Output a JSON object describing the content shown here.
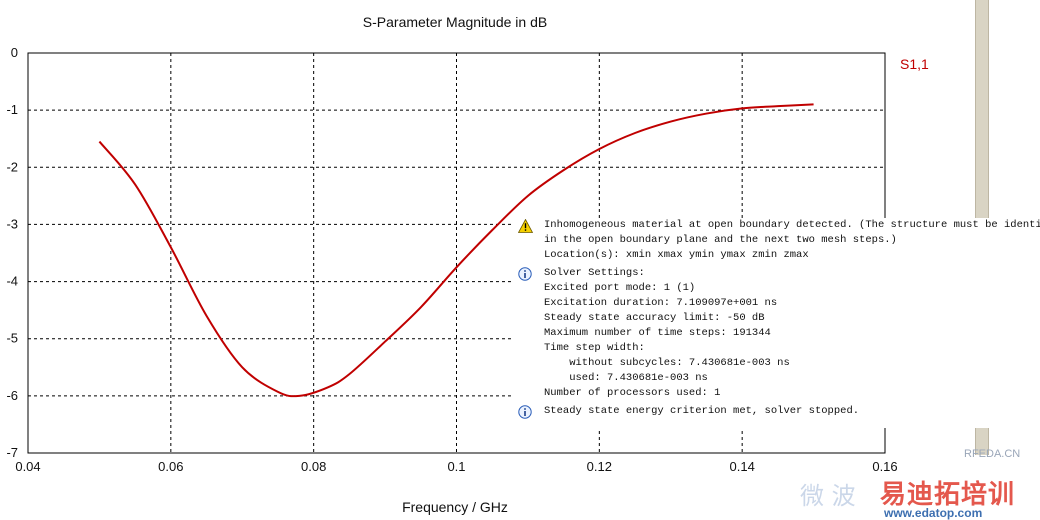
{
  "chart_data": {
    "type": "line",
    "title": "S-Parameter Magnitude in dB",
    "xlabel": "Frequency / GHz",
    "ylabel": "",
    "xlim": [
      0.04,
      0.16
    ],
    "ylim": [
      -7,
      0
    ],
    "xticks": [
      "0.04",
      "0.06",
      "0.08",
      "0.1",
      "0.12",
      "0.14",
      "0.16"
    ],
    "yticks": [
      "0",
      "-1",
      "-2",
      "-3",
      "-4",
      "-5",
      "-6",
      "-7"
    ],
    "grid": true,
    "legend_placement": "top-right",
    "series": [
      {
        "name": "S1,1",
        "color": "#c00000",
        "x": [
          0.05,
          0.055,
          0.06,
          0.065,
          0.07,
          0.075,
          0.078,
          0.082,
          0.085,
          0.09,
          0.095,
          0.1,
          0.105,
          0.11,
          0.115,
          0.12,
          0.125,
          0.13,
          0.135,
          0.14,
          0.145,
          0.15
        ],
        "y": [
          -1.55,
          -2.3,
          -3.4,
          -4.6,
          -5.5,
          -5.93,
          -6.0,
          -5.85,
          -5.62,
          -5.05,
          -4.45,
          -3.75,
          -3.1,
          -2.5,
          -2.05,
          -1.68,
          -1.4,
          -1.2,
          -1.06,
          -0.97,
          -0.93,
          -0.9
        ]
      }
    ]
  },
  "messages": [
    {
      "type": "warning",
      "icon": "warning-icon",
      "lines": [
        "Inhomogeneous material at open boundary detected. (The structure must be identical",
        "in the open boundary plane and the next two mesh steps.)",
        "Location(s): xmin xmax ymin ymax zmin zmax"
      ]
    },
    {
      "type": "info",
      "icon": "info-icon",
      "lines": [
        "Solver Settings:",
        "Excited port mode: 1 (1)",
        "Excitation duration: 7.109097e+001 ns",
        "Steady state accuracy limit: -50 dB",
        "Maximum number of time steps: 191344",
        "Time step width:",
        "    without subcycles: 7.430681e-003 ns",
        "    used: 7.430681e-003 ns",
        "Number of processors used: 1"
      ]
    },
    {
      "type": "info",
      "icon": "info-icon",
      "lines": [
        "Steady state energy criterion met, solver stopped."
      ]
    }
  ],
  "watermark": {
    "brand_text": "易迪拓培训",
    "site_text": "RFEDA.CN",
    "url_text": "www.edatop.com",
    "faint_text": "微 波"
  }
}
